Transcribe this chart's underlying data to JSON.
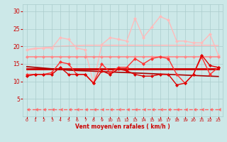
{
  "x": [
    0,
    1,
    2,
    3,
    4,
    5,
    6,
    7,
    8,
    9,
    10,
    11,
    12,
    13,
    14,
    15,
    16,
    17,
    18,
    19,
    20,
    21,
    22,
    23
  ],
  "series": [
    {
      "name": "rafales_high_line",
      "y": [
        19.0,
        19.5,
        19.5,
        19.5,
        22.5,
        22.0,
        19.5,
        19.0,
        9.5,
        20.5,
        22.5,
        22.0,
        21.5,
        28.0,
        22.5,
        25.5,
        28.5,
        27.5,
        21.5,
        21.5,
        21.0,
        21.0,
        23.5,
        17.5
      ],
      "color": "#ffbbbb",
      "lw": 1.0,
      "marker": "D",
      "ms": 2.0,
      "zorder": 2,
      "linestyle": "-"
    },
    {
      "name": "trend_rafales_upper",
      "y": [
        19.0,
        19.3,
        19.6,
        19.9,
        20.0,
        20.1,
        20.2,
        20.3,
        20.3,
        20.3,
        20.3,
        20.3,
        20.3,
        20.3,
        20.3,
        20.3,
        20.3,
        20.3,
        20.3,
        20.3,
        20.3,
        20.3,
        20.3,
        20.2
      ],
      "color": "#ffbbbb",
      "lw": 1.2,
      "marker": null,
      "ms": 0,
      "zorder": 1,
      "linestyle": "-"
    },
    {
      "name": "flat_17",
      "y": [
        17.0,
        17.0,
        17.0,
        17.0,
        17.0,
        17.0,
        17.0,
        17.0,
        17.0,
        17.0,
        17.0,
        17.0,
        17.0,
        17.0,
        17.0,
        17.0,
        17.0,
        17.0,
        17.0,
        17.0,
        17.0,
        17.0,
        17.0,
        17.0
      ],
      "color": "#ff8888",
      "lw": 1.2,
      "marker": "D",
      "ms": 2.0,
      "zorder": 2,
      "linestyle": "-"
    },
    {
      "name": "vent_mid_spiky",
      "y": [
        12.0,
        12.0,
        12.0,
        12.5,
        15.5,
        15.0,
        12.0,
        12.0,
        9.5,
        15.0,
        12.5,
        14.0,
        14.0,
        16.5,
        15.0,
        16.5,
        17.0,
        16.5,
        12.0,
        9.5,
        12.0,
        17.0,
        12.0,
        14.0
      ],
      "color": "#ff3333",
      "lw": 1.0,
      "marker": "D",
      "ms": 2.0,
      "zorder": 3,
      "linestyle": "-"
    },
    {
      "name": "trend_flat_13",
      "y": [
        13.5,
        13.5,
        13.5,
        13.5,
        13.5,
        13.5,
        13.5,
        13.5,
        13.5,
        13.5,
        13.5,
        13.5,
        13.5,
        13.5,
        13.5,
        13.5,
        13.5,
        13.5,
        13.5,
        13.5,
        13.5,
        13.5,
        13.5,
        13.5
      ],
      "color": "#cc0000",
      "lw": 2.0,
      "marker": null,
      "ms": 0,
      "zorder": 2,
      "linestyle": "-"
    },
    {
      "name": "trend_declining",
      "y": [
        14.2,
        14.0,
        13.8,
        13.6,
        13.4,
        13.2,
        13.1,
        13.0,
        12.9,
        12.8,
        12.7,
        12.6,
        12.5,
        12.4,
        12.3,
        12.2,
        12.1,
        12.0,
        11.9,
        11.8,
        11.7,
        11.6,
        11.5,
        11.4
      ],
      "color": "#aa0000",
      "lw": 1.2,
      "marker": null,
      "ms": 0,
      "zorder": 2,
      "linestyle": "-"
    },
    {
      "name": "vent_low_jagged",
      "y": [
        11.5,
        12.0,
        12.0,
        12.0,
        14.0,
        12.0,
        12.0,
        12.0,
        9.5,
        13.0,
        12.0,
        13.5,
        13.0,
        12.0,
        11.5,
        11.5,
        12.0,
        12.0,
        9.0,
        9.5,
        12.0,
        17.5,
        14.5,
        14.0
      ],
      "color": "#dd0000",
      "lw": 1.0,
      "marker": "D",
      "ms": 2.0,
      "zorder": 3,
      "linestyle": "-"
    },
    {
      "name": "dashed_bottom",
      "y": [
        2.0,
        2.0,
        2.0,
        2.0,
        2.0,
        2.0,
        2.0,
        2.0,
        2.0,
        2.0,
        2.0,
        2.0,
        2.0,
        2.0,
        2.0,
        2.0,
        2.0,
        2.0,
        2.0,
        2.0,
        2.0,
        2.0,
        2.0,
        2.0
      ],
      "color": "#ff6666",
      "lw": 1.0,
      "marker": 4,
      "ms": 3.0,
      "zorder": 2,
      "linestyle": "--"
    }
  ],
  "xlim": [
    -0.5,
    23.5
  ],
  "ylim": [
    0,
    32
  ],
  "yticks": [
    5,
    10,
    15,
    20,
    25,
    30
  ],
  "xticks": [
    0,
    1,
    2,
    3,
    4,
    5,
    6,
    7,
    8,
    9,
    10,
    11,
    12,
    13,
    14,
    15,
    16,
    17,
    18,
    19,
    20,
    21,
    22,
    23
  ],
  "xlabel": "Vent moyen/en rafales ( km/h )",
  "bg_color": "#cce8e8",
  "grid_color": "#aacccc",
  "tick_color": "#cc0000",
  "label_color": "#cc0000"
}
